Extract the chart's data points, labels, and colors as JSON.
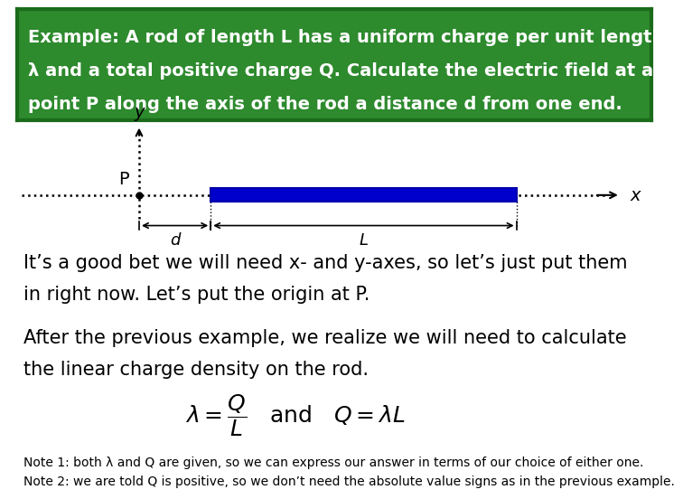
{
  "bg_color": "#ffffff",
  "header_bg": "#2d8a2d",
  "header_border_color": "#1a6b1a",
  "header_text_color": "#ffffff",
  "header_line1": "Example: A rod of length L has a uniform charge per unit length",
  "header_line2": "λ and a total positive charge Q. Calculate the electric field at a",
  "header_line3": "point P along the axis of the rod a distance d from one end.",
  "header_fontsize": 14,
  "body_text1_line1": "It’s a good bet we will need x- and y-axes, so let’s just put them",
  "body_text1_line2": "in right now. Let’s put the origin at P.",
  "body_text2_line1": "After the previous example, we realize we will need to calculate",
  "body_text2_line2": "the linear charge density on the rod.",
  "formula": "$\\lambda = \\dfrac{Q}{L}$   and   $Q = \\lambda L$",
  "note1": "Note 1: both λ and Q are given, so we can express our answer in terms of our choice of either one.",
  "note2": "Note 2: we are told Q is positive, so we don’t need the absolute value signs as in the previous example.",
  "body_fontsize": 15,
  "note_fontsize": 10,
  "formula_fontsize": 18,
  "rod_color": "#0000cc",
  "rod_edge_color": "#0000aa",
  "dot_color": "#000000",
  "arrow_color": "#000000",
  "label_d": "d",
  "label_L": "L",
  "label_P": "P",
  "label_x": "x",
  "label_y": "y"
}
